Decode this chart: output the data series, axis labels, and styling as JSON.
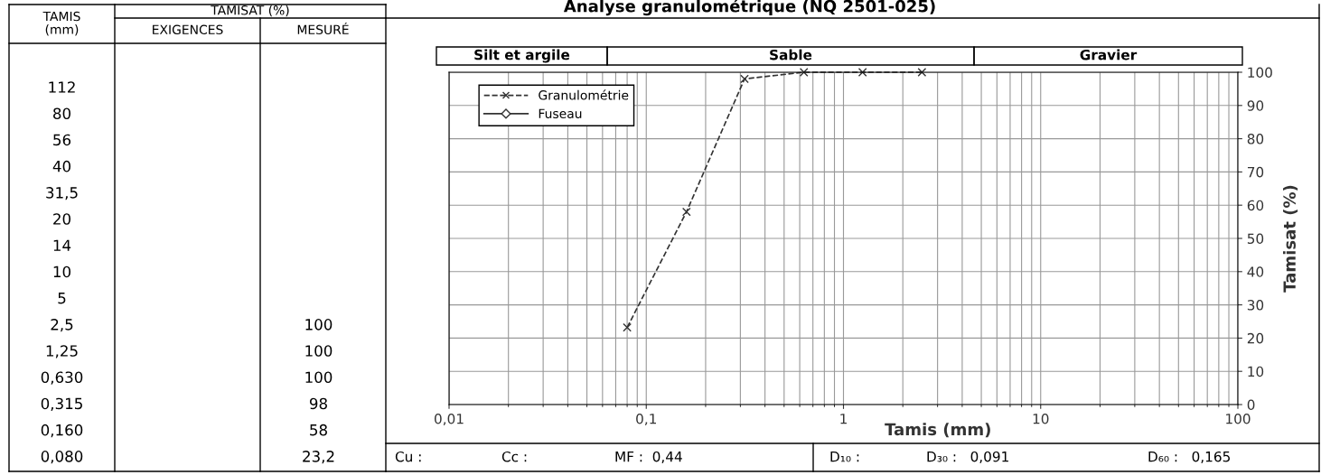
{
  "chart_data": [
    {
      "type": "other",
      "annotations": [
        "TAMIS\n(mm)",
        "TAMISAT (%)",
        "EXIGENCES",
        "MESURÉ"
      ],
      "categories": [
        "112",
        "80",
        "56",
        "40",
        "31,5",
        "20",
        "14",
        "10",
        "5",
        "2,5",
        "1,25",
        "0,630",
        "0,315",
        "0,160",
        "0,080"
      ],
      "value_labels": [
        null,
        null,
        null,
        null,
        null,
        null,
        null,
        null,
        null,
        "100",
        "100",
        "100",
        "98",
        "58",
        "23,2"
      ]
    },
    {
      "type": "line",
      "title": "Analyse granulométrique (NQ 2501-025)",
      "xlabel": "Tamis (mm)",
      "ylabel": "Tamisat (%)",
      "log": "x",
      "xlim": [
        0.01,
        100
      ],
      "xticks": [
        {
          "value": 0.01,
          "label": "0,01"
        },
        {
          "value": 0.1,
          "label": "0,1"
        },
        1,
        10,
        100
      ],
      "ylim": [
        0,
        100
      ],
      "yticks": [
        0,
        10,
        20,
        30,
        40,
        50,
        60,
        70,
        80,
        90,
        100
      ],
      "grid": true,
      "legend": "top left",
      "series": [
        {
          "name": "Granulométrie",
          "color": "#333333",
          "marker": "cross",
          "line_style": "dashed",
          "x": [
            0.08,
            0.16,
            0.315,
            0.63,
            1.25,
            2.5
          ],
          "values": [
            23.2,
            58,
            98,
            100,
            100,
            100
          ]
        },
        {
          "name": "Fuseau",
          "color": "#333333",
          "marker": "diamond",
          "line_style": "solid"
        }
      ],
      "annotations": [
        "Cu :",
        "Cc :",
        "MF :  0,44",
        "D₁₀ :",
        "D₃₀ :   0,091",
        "D₆₀ :   0,165"
      ]
    },
    {
      "type": "other",
      "annotations": [
        "Silt et argile",
        "Sable",
        "Gravier"
      ]
    }
  ]
}
